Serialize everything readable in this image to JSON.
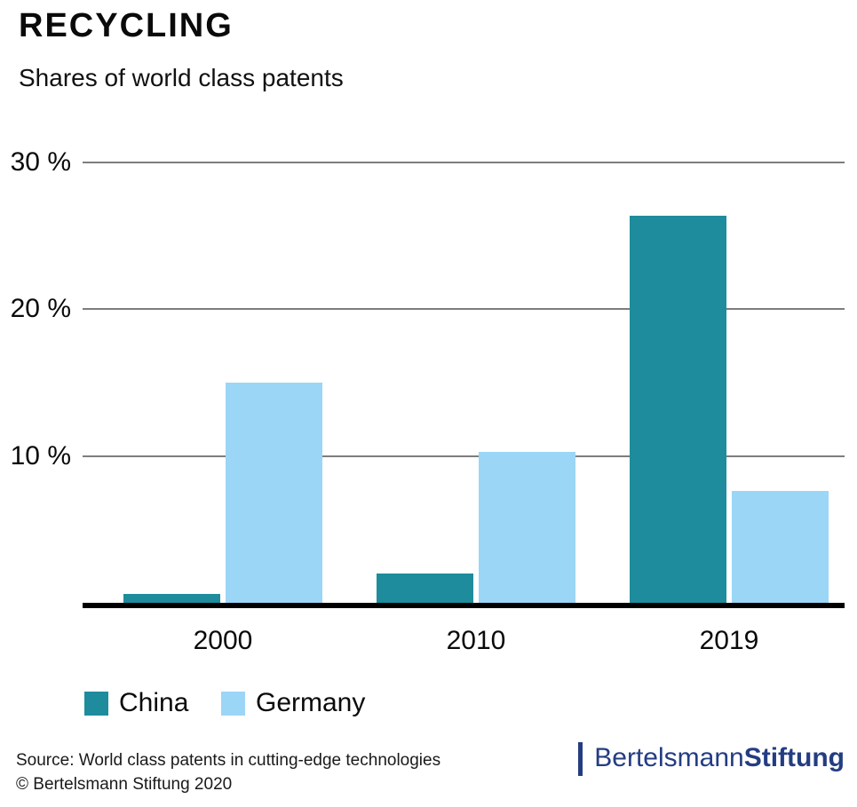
{
  "header": {
    "title": "RECYCLING",
    "subtitle": "Shares of world class patents"
  },
  "chart_data": {
    "type": "bar",
    "title": "RECYCLING — Shares of world class patents",
    "categories": [
      "2000",
      "2010",
      "2019"
    ],
    "series": [
      {
        "name": "China",
        "color": "#1e8c9c",
        "values": [
          0.6,
          2.0,
          26.4
        ]
      },
      {
        "name": "Germany",
        "color": "#9bd6f6",
        "values": [
          15.0,
          10.3,
          7.6
        ]
      }
    ],
    "unit": "%",
    "ylim": [
      0,
      30
    ],
    "yticks": [
      {
        "value": 30,
        "label": "30 %"
      },
      {
        "value": 20,
        "label": "20 %"
      },
      {
        "value": 10,
        "label": "10 %"
      }
    ],
    "grid": true,
    "legend_position": "bottom-left"
  },
  "legend": {
    "items": [
      {
        "label": "China",
        "color": "#1e8c9c"
      },
      {
        "label": "Germany",
        "color": "#9bd6f6"
      }
    ]
  },
  "footer": {
    "source_line1": "Source: World class patents in cutting-edge technologies",
    "source_line2": "© Bertelsmann Stiftung 2020",
    "logo": {
      "text_regular": "Bertelsmann",
      "text_bold": "Stiftung",
      "color": "#243c82"
    }
  }
}
